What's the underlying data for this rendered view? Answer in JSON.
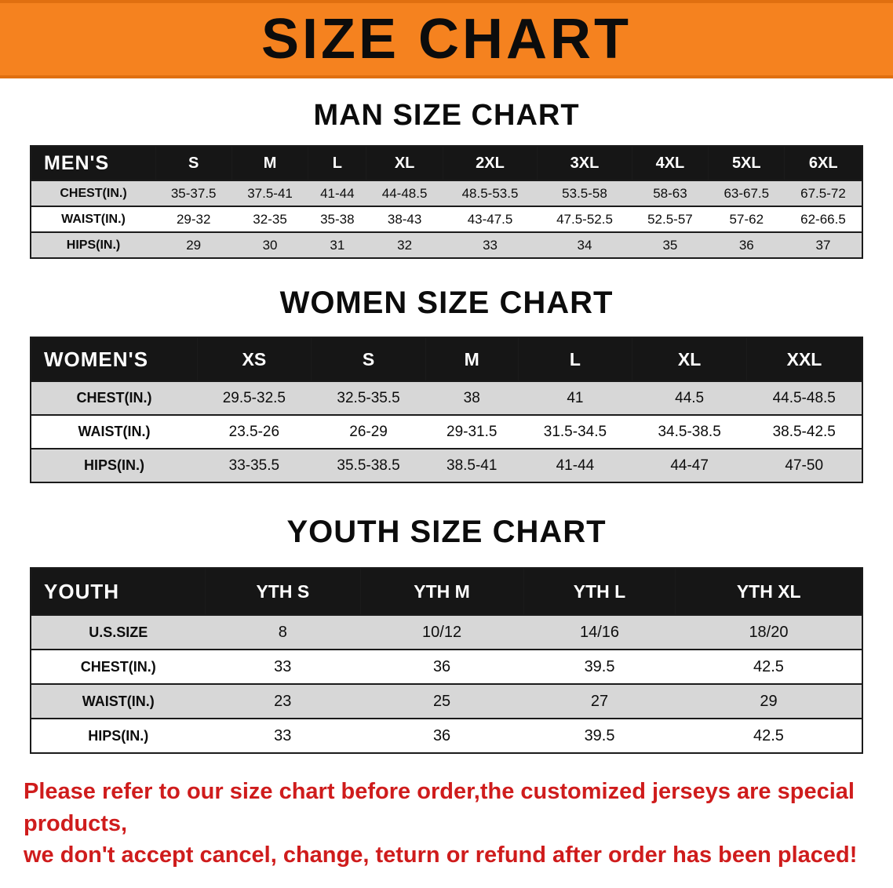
{
  "banner": {
    "title": "SIZE CHART"
  },
  "sections": {
    "men": {
      "heading": "MAN SIZE CHART",
      "table": {
        "header": [
          "MEN'S",
          "S",
          "M",
          "L",
          "XL",
          "2XL",
          "3XL",
          "4XL",
          "5XL",
          "6XL"
        ],
        "rows": [
          [
            "CHEST(IN.)",
            "35-37.5",
            "37.5-41",
            "41-44",
            "44-48.5",
            "48.5-53.5",
            "53.5-58",
            "58-63",
            "63-67.5",
            "67.5-72"
          ],
          [
            "WAIST(IN.)",
            "29-32",
            "32-35",
            "35-38",
            "38-43",
            "43-47.5",
            "47.5-52.5",
            "52.5-57",
            "57-62",
            "62-66.5"
          ],
          [
            "HIPS(IN.)",
            "29",
            "30",
            "31",
            "32",
            "33",
            "34",
            "35",
            "36",
            "37"
          ]
        ]
      }
    },
    "women": {
      "heading": "WOMEN SIZE CHART",
      "table": {
        "header": [
          "WOMEN'S",
          "XS",
          "S",
          "M",
          "L",
          "XL",
          "XXL"
        ],
        "rows": [
          [
            "CHEST(IN.)",
            "29.5-32.5",
            "32.5-35.5",
            "38",
            "41",
            "44.5",
            "44.5-48.5"
          ],
          [
            "WAIST(IN.)",
            "23.5-26",
            "26-29",
            "29-31.5",
            "31.5-34.5",
            "34.5-38.5",
            "38.5-42.5"
          ],
          [
            "HIPS(IN.)",
            "33-35.5",
            "35.5-38.5",
            "38.5-41",
            "41-44",
            "44-47",
            "47-50"
          ]
        ]
      }
    },
    "youth": {
      "heading": "YOUTH SIZE CHART",
      "table": {
        "header": [
          "YOUTH",
          "YTH S",
          "YTH M",
          "YTH L",
          "YTH XL"
        ],
        "rows": [
          [
            "U.S.SIZE",
            "8",
            "10/12",
            "14/16",
            "18/20"
          ],
          [
            "CHEST(IN.)",
            "33",
            "36",
            "39.5",
            "42.5"
          ],
          [
            "WAIST(IN.)",
            "23",
            "25",
            "27",
            "29"
          ],
          [
            "HIPS(IN.)",
            "33",
            "36",
            "39.5",
            "42.5"
          ]
        ]
      }
    }
  },
  "footer": {
    "line1": "Please refer to our size chart before order,the customized jerseys are special products,",
    "line2": "we don't accept cancel, change, teturn or refund after order has been placed!"
  },
  "colors": {
    "banner_bg": "#f5821f",
    "table_header_bg": "#161616",
    "row_alt_bg": "#d7d7d7",
    "footer_text": "#cf1c1c"
  }
}
